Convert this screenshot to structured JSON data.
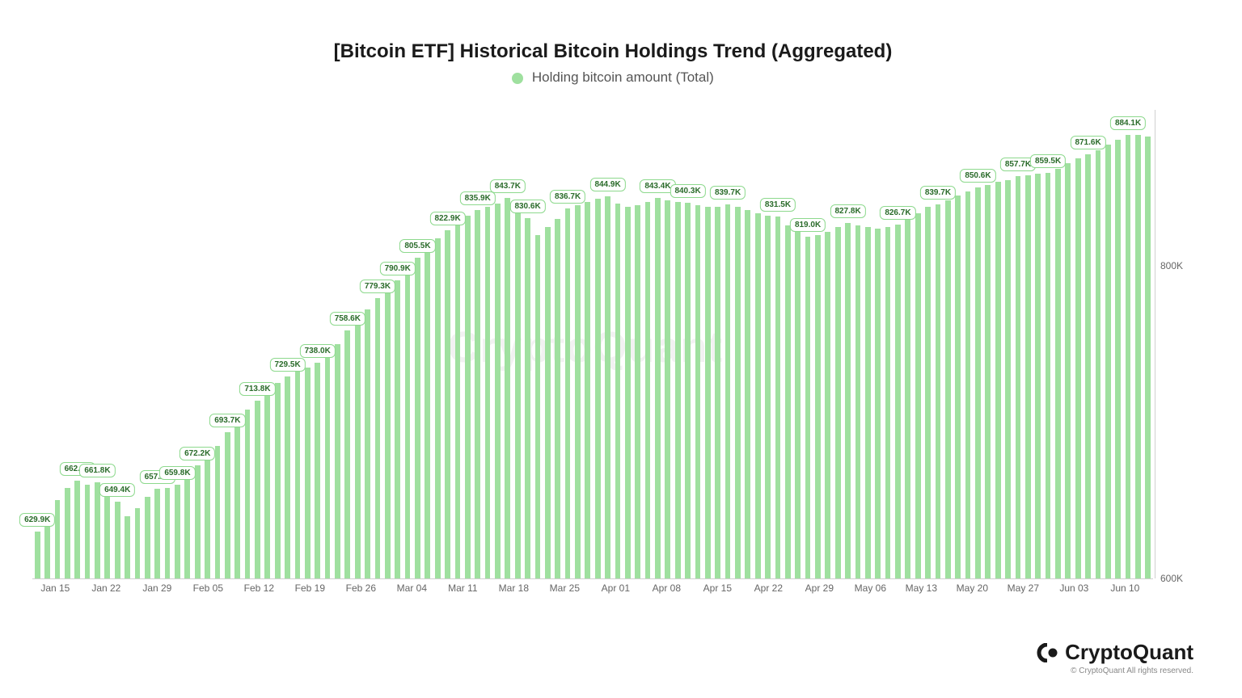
{
  "chart": {
    "type": "bar",
    "title": "[Bitcoin ETF] Historical Bitcoin Holdings Trend (Aggregated)",
    "legend_label": "Holding bitcoin amount (Total)",
    "bar_color": "#9fe09f",
    "legend_dot_color": "#9fe09f",
    "label_border_color": "#8dd98d",
    "label_text_color": "#2a6b2a",
    "background_color": "#ffffff",
    "axis_color": "#d0d0d0",
    "tick_text_color": "#666666",
    "title_fontsize": 24,
    "legend_fontsize": 17,
    "tick_fontsize": 12,
    "label_fontsize": 10,
    "ylim": [
      600,
      900
    ],
    "yticks": [
      {
        "value": 600,
        "label": "600K"
      },
      {
        "value": 800,
        "label": "800K"
      }
    ],
    "xticks": [
      "Jan 15",
      "Jan 22",
      "Jan 29",
      "Feb 05",
      "Feb 12",
      "Feb 19",
      "Feb 26",
      "Mar 04",
      "Mar 11",
      "Mar 18",
      "Mar 25",
      "Apr 01",
      "Apr 08",
      "Apr 15",
      "Apr 22",
      "Apr 29",
      "May 06",
      "May 13",
      "May 20",
      "May 27",
      "Jun 03",
      "Jun 10"
    ],
    "bars": [
      629.9,
      635,
      650,
      658,
      662.4,
      660,
      661.8,
      655,
      649.4,
      640,
      645,
      652,
      657.2,
      658,
      659.8,
      665,
      672.2,
      678,
      685,
      693.7,
      702,
      708,
      713.8,
      720,
      725,
      729.5,
      733,
      735,
      738.0,
      744,
      750,
      758.6,
      766,
      772,
      779.3,
      785,
      790.9,
      798,
      805.5,
      812,
      818,
      822.9,
      828,
      832,
      835.9,
      838,
      840,
      843.7,
      836,
      830.6,
      820,
      825,
      830,
      836.7,
      839,
      841,
      843,
      844.9,
      840,
      838,
      839,
      841,
      843.4,
      842,
      841,
      840.3,
      839,
      838,
      838,
      839.7,
      838,
      836,
      834,
      832,
      831.5,
      826,
      822,
      819.0,
      820,
      822,
      825,
      827.8,
      826,
      825,
      824,
      825,
      826.7,
      830,
      834,
      838,
      839.7,
      842,
      845,
      848,
      850.6,
      852,
      854,
      855,
      857.7,
      858,
      859,
      859.5,
      862,
      866,
      869,
      871.6,
      874,
      878,
      881,
      884.1,
      884,
      883
    ],
    "labels": [
      {
        "idx": 0,
        "text": "629.9K"
      },
      {
        "idx": 4,
        "text": "662.4K"
      },
      {
        "idx": 6,
        "text": "661.8K"
      },
      {
        "idx": 8,
        "text": "649.4K"
      },
      {
        "idx": 12,
        "text": "657.2K"
      },
      {
        "idx": 14,
        "text": "659.8K"
      },
      {
        "idx": 16,
        "text": "672.2K"
      },
      {
        "idx": 19,
        "text": "693.7K"
      },
      {
        "idx": 22,
        "text": "713.8K"
      },
      {
        "idx": 25,
        "text": "729.5K"
      },
      {
        "idx": 28,
        "text": "738.0K"
      },
      {
        "idx": 31,
        "text": "758.6K"
      },
      {
        "idx": 34,
        "text": "779.3K"
      },
      {
        "idx": 36,
        "text": "790.9K"
      },
      {
        "idx": 38,
        "text": "805.5K"
      },
      {
        "idx": 41,
        "text": "822.9K"
      },
      {
        "idx": 44,
        "text": "835.9K"
      },
      {
        "idx": 47,
        "text": "843.7K"
      },
      {
        "idx": 49,
        "text": "830.6K"
      },
      {
        "idx": 53,
        "text": "836.7K"
      },
      {
        "idx": 57,
        "text": "844.9K"
      },
      {
        "idx": 62,
        "text": "843.4K"
      },
      {
        "idx": 65,
        "text": "840.3K"
      },
      {
        "idx": 69,
        "text": "839.7K"
      },
      {
        "idx": 74,
        "text": "831.5K"
      },
      {
        "idx": 77,
        "text": "819.0K"
      },
      {
        "idx": 81,
        "text": "827.8K"
      },
      {
        "idx": 86,
        "text": "826.7K"
      },
      {
        "idx": 90,
        "text": "839.7K"
      },
      {
        "idx": 94,
        "text": "850.6K"
      },
      {
        "idx": 98,
        "text": "857.7K"
      },
      {
        "idx": 101,
        "text": "859.5K"
      },
      {
        "idx": 105,
        "text": "871.6K"
      },
      {
        "idx": 109,
        "text": "884.1K"
      }
    ],
    "watermark_text": "CryptoQuant",
    "branding": {
      "name": "CryptoQuant",
      "copyright": "© CryptoQuant All rights reserved."
    }
  }
}
